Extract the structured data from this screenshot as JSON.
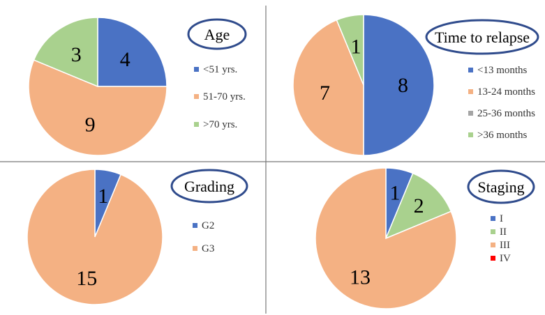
{
  "colors": {
    "blue": "#4a72c4",
    "orange": "#f4b183",
    "green": "#a9d18e",
    "gray": "#a5a5a5",
    "red": "#ff0000",
    "title_border": "#2f4b8c"
  },
  "chart_data": [
    {
      "type": "pie",
      "title": "Age",
      "slices": [
        {
          "label": "<51 yrs.",
          "value": 4,
          "color": "#4a72c4"
        },
        {
          "label": "51-70 yrs.",
          "value": 9,
          "color": "#f4b183"
        },
        {
          "label": ">70 yrs.",
          "value": 3,
          "color": "#a9d18e"
        }
      ]
    },
    {
      "type": "pie",
      "title": "Time to relapse",
      "slices": [
        {
          "label": "<13 months",
          "value": 8,
          "color": "#4a72c4"
        },
        {
          "label": "13-24 months",
          "value": 7,
          "color": "#f4b183"
        },
        {
          "label": "25-36 months",
          "value": 0,
          "color": "#a5a5a5"
        },
        {
          "label": ">36 months",
          "value": 1,
          "color": "#a9d18e"
        }
      ]
    },
    {
      "type": "pie",
      "title": "Grading",
      "slices": [
        {
          "label": "G2",
          "value": 1,
          "color": "#4a72c4"
        },
        {
          "label": "G3",
          "value": 15,
          "color": "#f4b183"
        }
      ]
    },
    {
      "type": "pie",
      "title": "Staging",
      "slices": [
        {
          "label": "I",
          "value": 1,
          "color": "#4a72c4"
        },
        {
          "label": "II",
          "value": 2,
          "color": "#a9d18e"
        },
        {
          "label": "III",
          "value": 13,
          "color": "#f4b183"
        },
        {
          "label": "IV",
          "value": 0,
          "color": "#ff0000"
        }
      ]
    }
  ]
}
